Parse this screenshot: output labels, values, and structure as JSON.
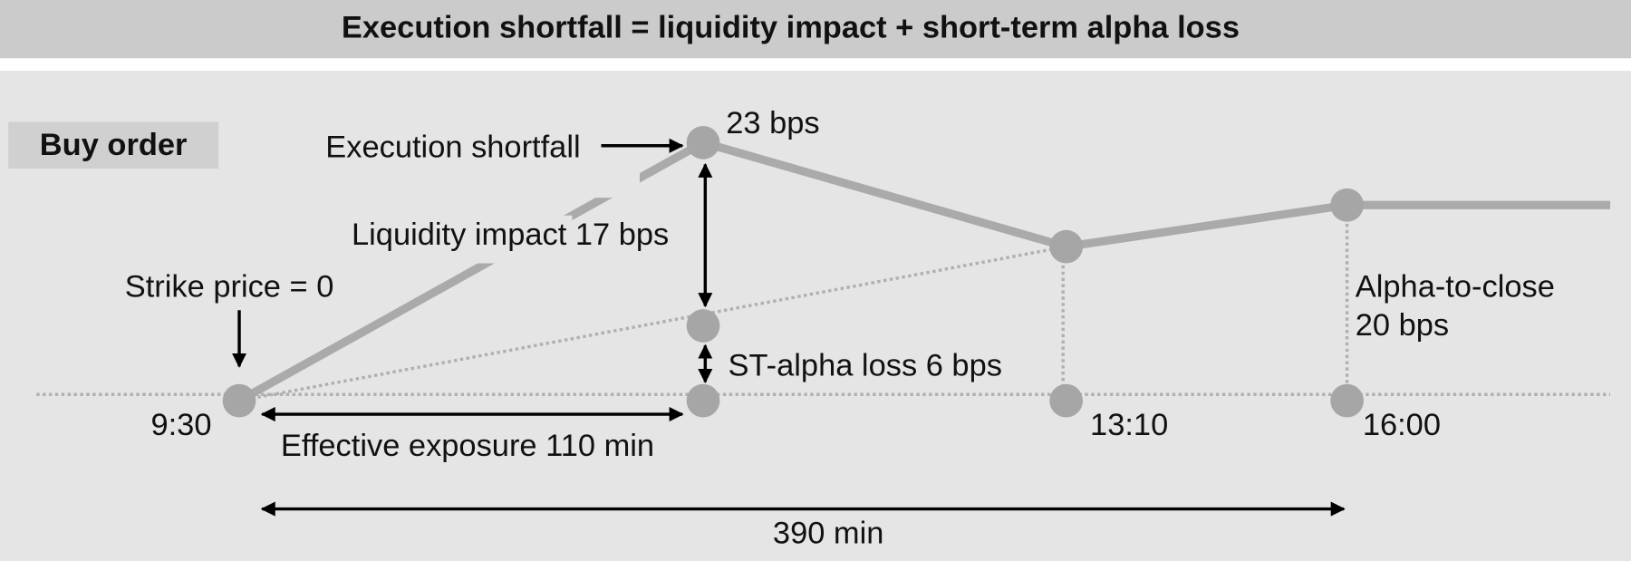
{
  "title": "Execution shortfall = liquidity impact + short-term alpha loss",
  "badge": "Buy order",
  "labels": {
    "execution_shortfall": "Execution shortfall",
    "shortfall_bps": "23 bps",
    "liquidity_impact": "Liquidity impact 17 bps",
    "strike_price": "Strike price = 0",
    "st_alpha_loss": "ST-alpha loss 6 bps",
    "alpha_to_close_line1": "Alpha-to-close",
    "alpha_to_close_line2": "20 bps",
    "effective_exposure": "Effective exposure 110 min",
    "total_duration": "390 min"
  },
  "times": {
    "start": "9:30",
    "mid": "13:10",
    "close": "16:00"
  },
  "colors": {
    "title_bar": "#cbcbcb",
    "panel": "#e5e5e5",
    "badge": "#d0d0d0",
    "price_line": "#aaaaaa",
    "dot": "#a6a6a6",
    "dotted": "#b0b0b0",
    "arrow": "#000000"
  }
}
